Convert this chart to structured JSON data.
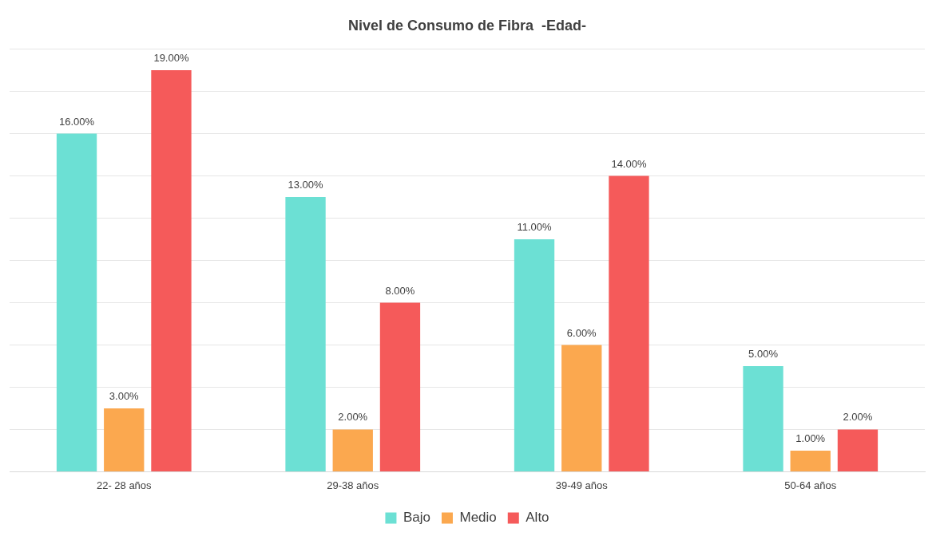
{
  "chart_data": {
    "type": "bar",
    "title": "Nivel de Consumo de Fibra  -Edad-",
    "categories": [
      "22- 28 años",
      "29-38 años",
      "39-49 años",
      "50-64 años"
    ],
    "series": [
      {
        "name": "Bajo",
        "color": "#6ce0d4",
        "values": [
          16,
          13,
          11,
          5
        ],
        "value_labels": [
          "16.00%",
          "13.00%",
          "11.00%",
          "5.00%"
        ]
      },
      {
        "name": "Medio",
        "color": "#fba84f",
        "values": [
          3,
          2,
          6,
          1
        ],
        "value_labels": [
          "3.00%",
          "2.00%",
          "6.00%",
          "1.00%"
        ]
      },
      {
        "name": "Alto",
        "color": "#f55a5a",
        "values": [
          19,
          8,
          14,
          2
        ],
        "value_labels": [
          "19.00%",
          "8.00%",
          "14.00%",
          "2.00%"
        ]
      }
    ],
    "ylim": [
      0,
      20
    ],
    "yticks": [
      {
        "value": 0,
        "label": null
      },
      {
        "value": 2,
        "label": null
      },
      {
        "value": 4,
        "label": null
      },
      {
        "value": 6,
        "label": null
      },
      {
        "value": 8,
        "label": null
      },
      {
        "value": 10,
        "label": null
      },
      {
        "value": 12,
        "label": null
      },
      {
        "value": 14,
        "label": null
      },
      {
        "value": 16,
        "label": null
      },
      {
        "value": 18,
        "label": null
      },
      {
        "value": 20,
        "label": null
      }
    ],
    "tick_labels": "x",
    "grid": "y",
    "legend": "bottom"
  }
}
